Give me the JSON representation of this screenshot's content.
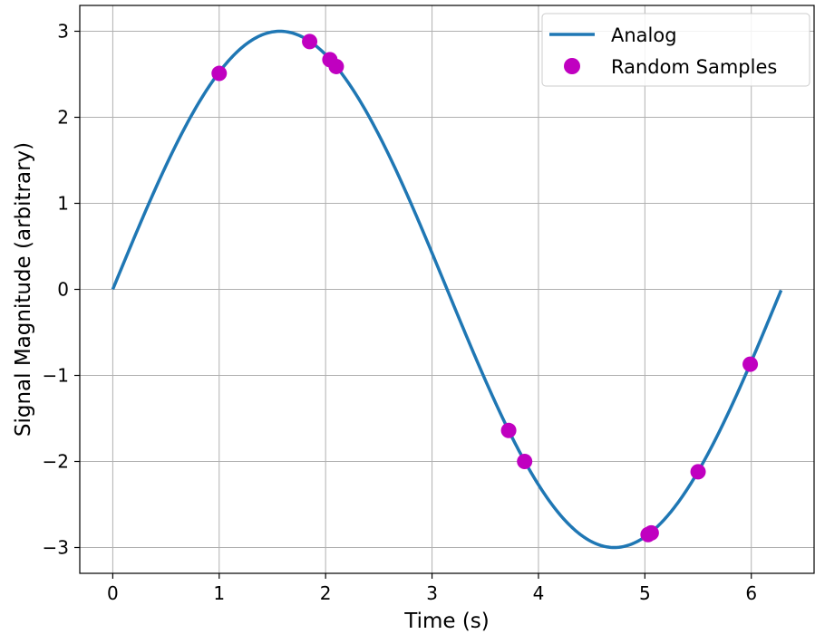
{
  "chart_data": {
    "type": "line",
    "title": "",
    "xlabel": "Time (s)",
    "ylabel": "Signal Magnitude (arbitrary)",
    "xlim": [
      -0.31,
      6.59
    ],
    "ylim": [
      -3.3,
      3.3
    ],
    "xticks": [
      0,
      1,
      2,
      3,
      4,
      5,
      6
    ],
    "yticks": [
      3,
      2,
      1,
      0,
      -1,
      -2,
      -3
    ],
    "xtick_labels": [
      "0",
      "1",
      "2",
      "3",
      "4",
      "5",
      "6"
    ],
    "ytick_labels": [
      "3",
      "2",
      "1",
      "0",
      "−1",
      "−2",
      "−3"
    ],
    "grid": true,
    "legend_position": "top-right",
    "series": [
      {
        "name": "Analog",
        "kind": "line",
        "color": "#1f77b4",
        "function": "3*sin(t)",
        "x_range": [
          0,
          6.28
        ]
      },
      {
        "name": "Random Samples",
        "kind": "scatter",
        "color": "#c000c0",
        "x": [
          1.0,
          1.85,
          2.04,
          2.1,
          3.72,
          3.87,
          5.03,
          5.06,
          5.5,
          5.99
        ],
        "y": [
          2.51,
          2.88,
          2.67,
          2.59,
          -1.64,
          -2.0,
          -2.85,
          -2.83,
          -2.12,
          -0.87
        ]
      }
    ]
  }
}
